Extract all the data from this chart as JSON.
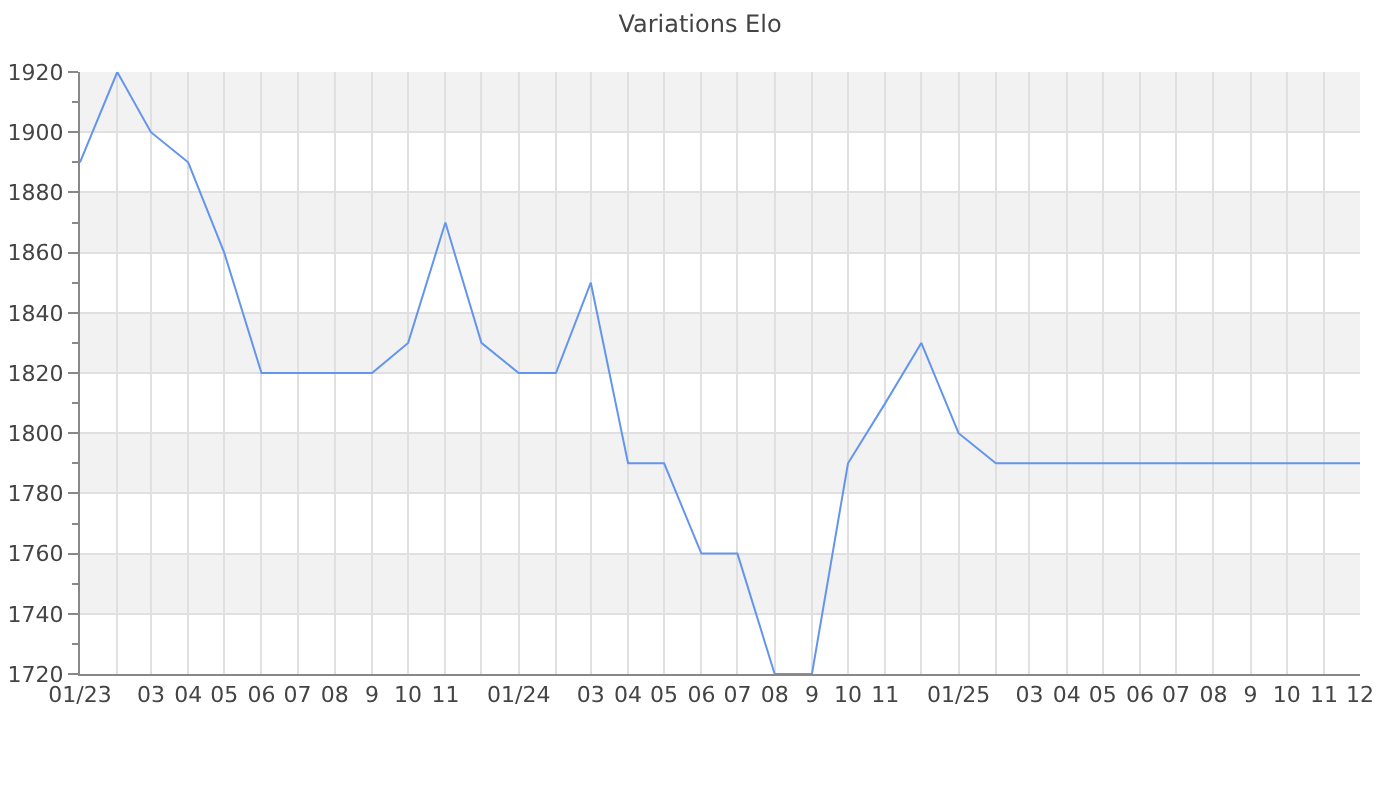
{
  "chart_data": {
    "type": "line",
    "title": "Variations Elo",
    "x": [
      "2023-01",
      "2023-02",
      "2023-03",
      "2023-04",
      "2023-05",
      "2023-06",
      "2023-07",
      "2023-08",
      "2023-09",
      "2023-10",
      "2023-11",
      "2023-12",
      "2024-01",
      "2024-02",
      "2024-03",
      "2024-04",
      "2024-05",
      "2024-06",
      "2024-07",
      "2024-08",
      "2024-09",
      "2024-10",
      "2024-11",
      "2024-12",
      "2025-01",
      "2025-02",
      "2025-03",
      "2025-04",
      "2025-05",
      "2025-06",
      "2025-07",
      "2025-08",
      "2025-09",
      "2025-10",
      "2025-11",
      "2025-12"
    ],
    "series": [
      {
        "color": "#6495ed",
        "values": [
          1890,
          1920,
          1900,
          1890,
          1860,
          1820,
          1820,
          1820,
          1820,
          1830,
          1870,
          1830,
          1820,
          1820,
          1850,
          1790,
          1790,
          1760,
          1760,
          1720,
          1720,
          1790,
          1810,
          1830,
          1800,
          1790,
          1790,
          1790,
          1790,
          1790,
          1790,
          1790,
          1790,
          1790,
          1790,
          1790
        ]
      }
    ],
    "xlim": [
      "2023-01",
      "2025-12"
    ],
    "xticks": [
      {
        "value": "2023-01",
        "label": "01/23"
      },
      {
        "value": "2023-02",
        "label": null
      },
      {
        "value": "2023-03",
        "label": "03"
      },
      {
        "value": "2023-04",
        "label": "04"
      },
      {
        "value": "2023-05",
        "label": "05"
      },
      {
        "value": "2023-06",
        "label": "06"
      },
      {
        "value": "2023-07",
        "label": "07"
      },
      {
        "value": "2023-08",
        "label": "08"
      },
      {
        "value": "2023-09",
        "label": "9"
      },
      {
        "value": "2023-10",
        "label": "10"
      },
      {
        "value": "2023-11",
        "label": "11"
      },
      {
        "value": "2023-12",
        "label": null
      },
      {
        "value": "2024-01",
        "label": "01/24"
      },
      {
        "value": "2024-02",
        "label": null
      },
      {
        "value": "2024-03",
        "label": "03"
      },
      {
        "value": "2024-04",
        "label": "04"
      },
      {
        "value": "2024-05",
        "label": "05"
      },
      {
        "value": "2024-06",
        "label": "06"
      },
      {
        "value": "2024-07",
        "label": "07"
      },
      {
        "value": "2024-08",
        "label": "08"
      },
      {
        "value": "2024-09",
        "label": "9"
      },
      {
        "value": "2024-10",
        "label": "10"
      },
      {
        "value": "2024-11",
        "label": "11"
      },
      {
        "value": "2024-12",
        "label": null
      },
      {
        "value": "2025-01",
        "label": "01/25"
      },
      {
        "value": "2025-02",
        "label": null
      },
      {
        "value": "2025-03",
        "label": "03"
      },
      {
        "value": "2025-04",
        "label": "04"
      },
      {
        "value": "2025-05",
        "label": "05"
      },
      {
        "value": "2025-06",
        "label": "06"
      },
      {
        "value": "2025-07",
        "label": "07"
      },
      {
        "value": "2025-08",
        "label": "08"
      },
      {
        "value": "2025-09",
        "label": "9"
      },
      {
        "value": "2025-10",
        "label": "10"
      },
      {
        "value": "2025-11",
        "label": "11"
      },
      {
        "value": "2025-12",
        "label": "12"
      }
    ],
    "ylim": [
      1720,
      1920
    ],
    "yticks": [
      1720,
      {
        "value": 1730,
        "label": null
      },
      1740,
      {
        "value": 1750,
        "label": null
      },
      1760,
      {
        "value": 1770,
        "label": null
      },
      1780,
      {
        "value": 1790,
        "label": null
      },
      1800,
      {
        "value": 1810,
        "label": null
      },
      1820,
      {
        "value": 1830,
        "label": null
      },
      1840,
      {
        "value": 1850,
        "label": null
      },
      1860,
      {
        "value": 1870,
        "label": null
      },
      1880,
      {
        "value": 1890,
        "label": null
      },
      1900,
      {
        "value": 1910,
        "label": null
      },
      1920
    ],
    "grid": true
  }
}
